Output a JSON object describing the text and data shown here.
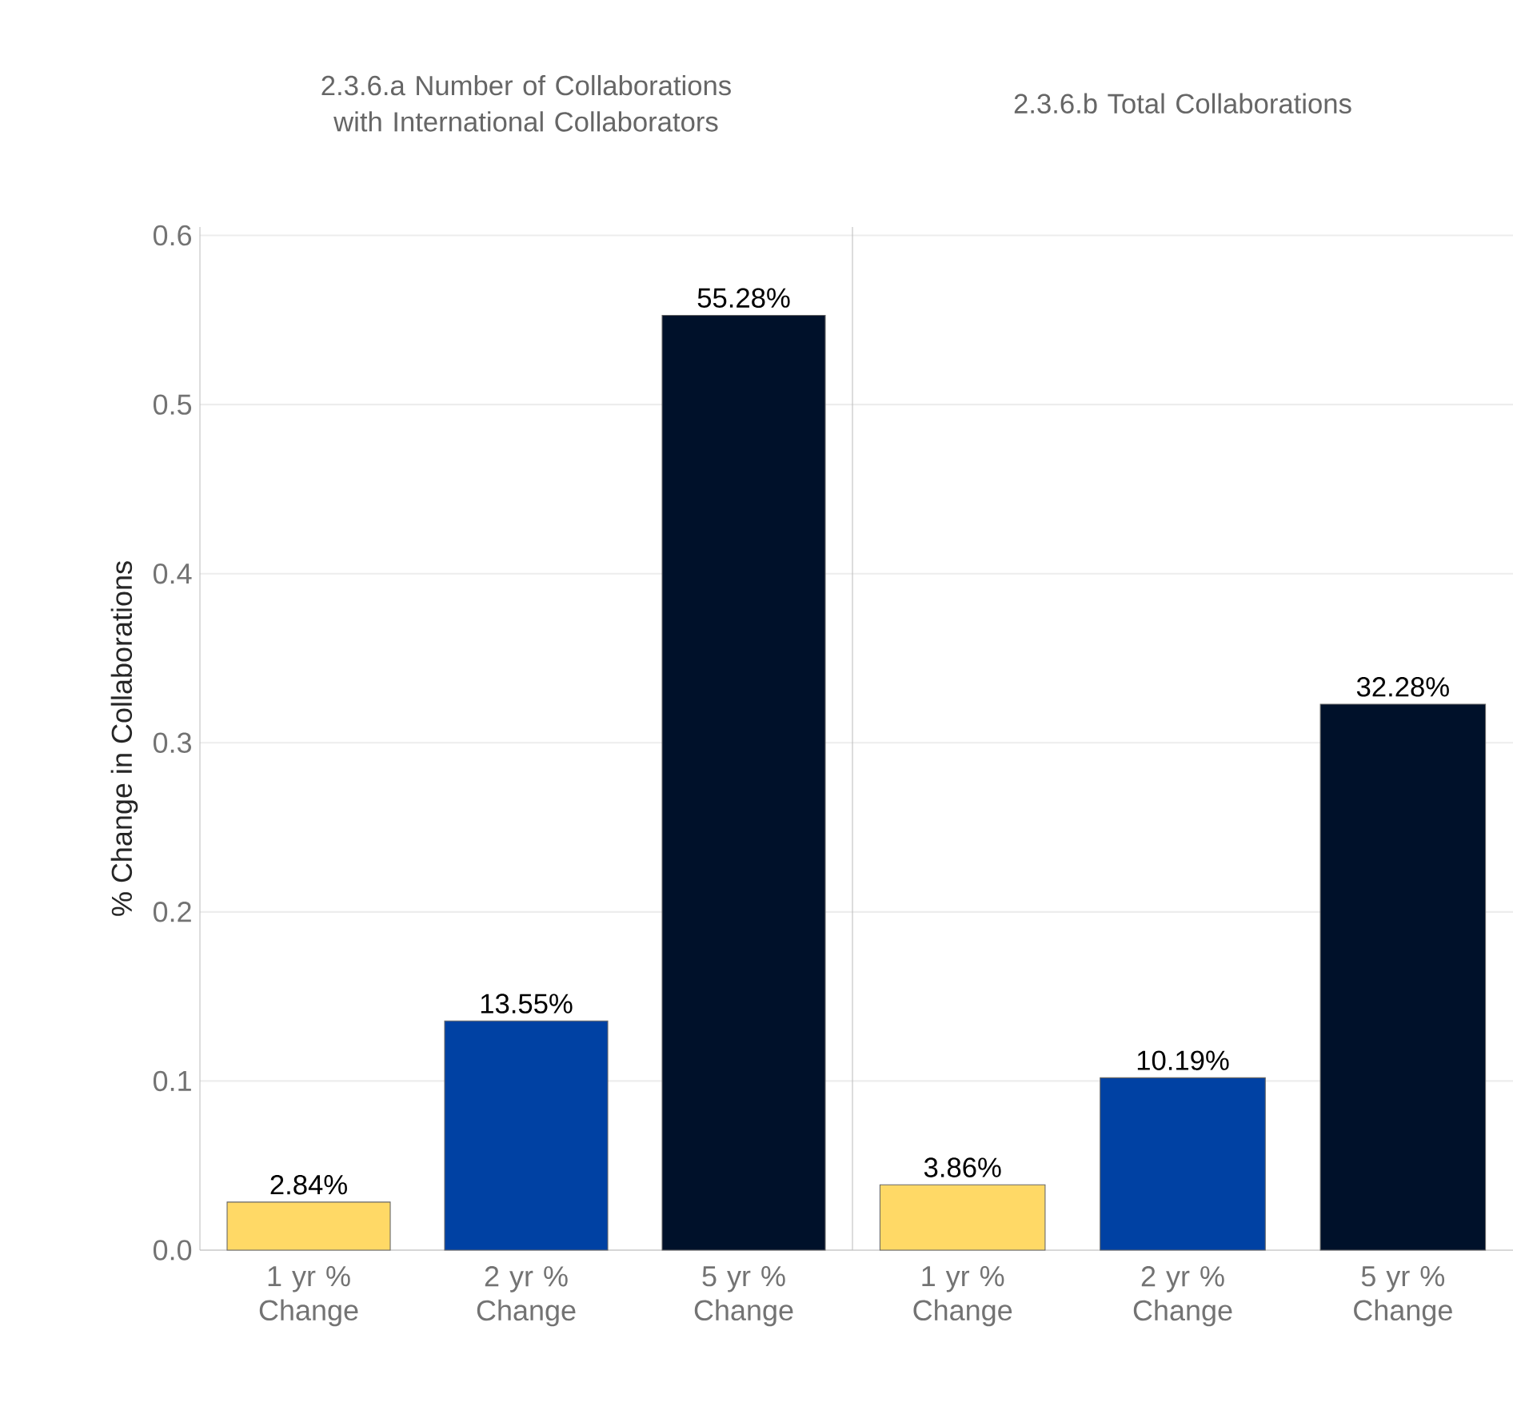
{
  "chart_data": [
    {
      "type": "bar",
      "title": "2.3.6.a Number of Collaborations with International Collaborators",
      "ylabel": "% Change in Collaborations",
      "categories": [
        "1 yr % Change",
        "2 yr % Change",
        "5 yr % Change"
      ],
      "values": [
        0.0284,
        0.1355,
        0.5528
      ],
      "value_labels": [
        "2.84%",
        "13.55%",
        "55.28%"
      ],
      "colors": [
        "#ffd966",
        "#0041a3",
        "#00112a"
      ],
      "ylim": [
        0,
        0.605
      ],
      "yticks": [
        {
          "value": 0,
          "label": "0.0"
        },
        0.1,
        0.2,
        0.3,
        0.4,
        0.5,
        0.6
      ],
      "grid": "y"
    },
    {
      "type": "bar",
      "title": "2.3.6.b Total Collaborations",
      "categories": [
        "1 yr % Change",
        "2 yr % Change",
        "5 yr % Change"
      ],
      "values": [
        0.0386,
        0.1019,
        0.3228
      ],
      "value_labels": [
        "3.86%",
        "10.19%",
        "32.28%"
      ],
      "colors": [
        "#ffd966",
        "#0041a3",
        "#00112a"
      ],
      "ylim": [
        0,
        0.605
      ],
      "yticks": [
        0,
        0.1,
        0.2,
        0.3,
        0.4,
        0.5,
        0.6
      ],
      "grid": "y",
      "tick_labels": "x"
    }
  ]
}
